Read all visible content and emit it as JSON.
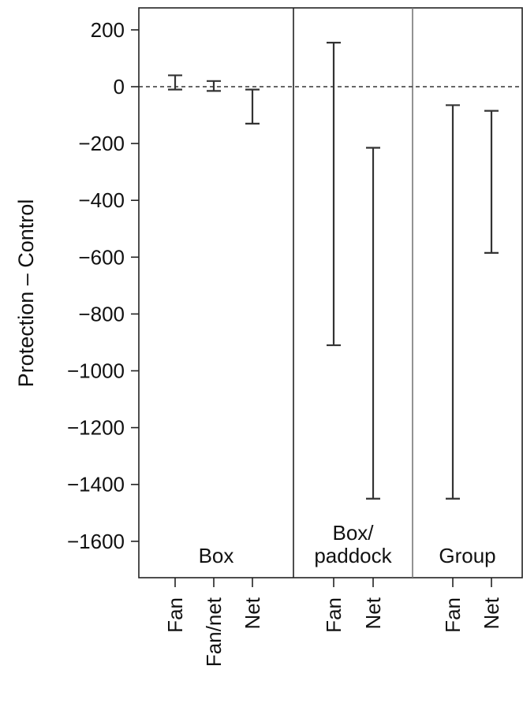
{
  "chart_data": {
    "type": "interval",
    "ylabel": "Protection – Control",
    "ylim": [
      -1720,
      230
    ],
    "yticks": [
      200,
      0,
      -200,
      -400,
      -600,
      -800,
      -1000,
      -1200,
      -1400,
      -1600
    ],
    "ytick_labels": [
      "200",
      "0",
      "−200",
      "−400",
      "−600",
      "−800",
      "−1000",
      "−1200",
      "−1400",
      "−1600"
    ],
    "reference_line": 0,
    "grid": false,
    "panels": [
      {
        "name": "Box",
        "label_lines": [
          "Box"
        ],
        "categories": [
          "Fan",
          "Fan/net",
          "Net"
        ],
        "intervals": [
          {
            "category": "Fan",
            "lower": -10,
            "upper": 40
          },
          {
            "category": "Fan/net",
            "lower": -15,
            "upper": 20
          },
          {
            "category": "Net",
            "lower": -130,
            "upper": -10
          }
        ]
      },
      {
        "name": "Box/paddock",
        "label_lines": [
          "Box/",
          "paddock"
        ],
        "categories": [
          "Fan",
          "Net"
        ],
        "intervals": [
          {
            "category": "Fan",
            "lower": -910,
            "upper": 155
          },
          {
            "category": "Net",
            "lower": -1450,
            "upper": -215
          }
        ]
      },
      {
        "name": "Group",
        "label_lines": [
          "Group"
        ],
        "categories": [
          "Fan",
          "Net"
        ],
        "intervals": [
          {
            "category": "Fan",
            "lower": -1450,
            "upper": -65
          },
          {
            "category": "Net",
            "lower": -585,
            "upper": -85
          }
        ]
      }
    ]
  }
}
